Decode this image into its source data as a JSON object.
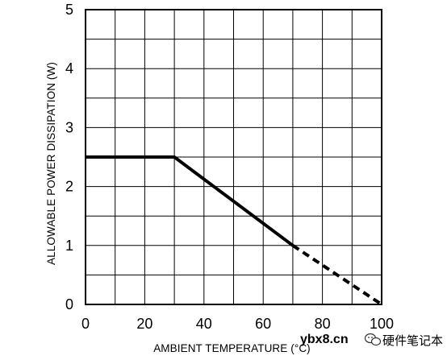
{
  "chart_data": {
    "type": "line",
    "title": "",
    "xlabel": "AMBIENT TEMPERATURE (°C)",
    "ylabel": "ALLOWABLE POWER DISSIPATION (W)",
    "xlim": [
      0,
      100
    ],
    "ylim": [
      0,
      5
    ],
    "xticks": [
      "0",
      "20",
      "40",
      "60",
      "80",
      "100"
    ],
    "yticks": [
      "0",
      "1",
      "2",
      "3",
      "4",
      "5"
    ],
    "grid": true,
    "grid_x_step": 10,
    "grid_y_step": 0.5,
    "legend": "none",
    "series": [
      {
        "style": "solid",
        "x": [
          0,
          30,
          70
        ],
        "y": [
          2.5,
          2.5,
          1.0
        ]
      },
      {
        "style": "dashed",
        "x": [
          70,
          100
        ],
        "y": [
          1.0,
          0
        ]
      }
    ]
  },
  "watermark": {
    "site": "ybx8.cn",
    "brand": "硬件笔记本"
  },
  "colors": {
    "line": "#000000",
    "grid": "#000000",
    "background": "#ffffff"
  }
}
